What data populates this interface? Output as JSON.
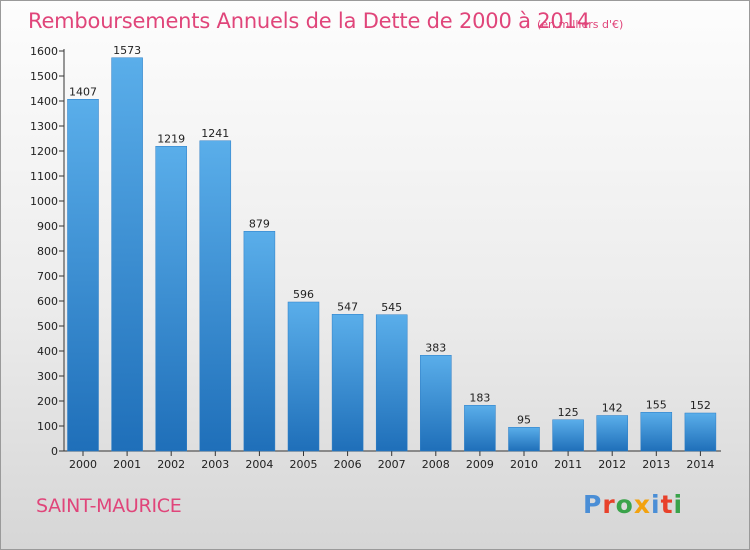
{
  "chart_data": {
    "type": "bar",
    "title": "Remboursements Annuels de la Dette de 2000 à 2014",
    "unit": "(en milliers d'€)",
    "categories": [
      "2000",
      "2001",
      "2002",
      "2003",
      "2004",
      "2005",
      "2006",
      "2007",
      "2008",
      "2009",
      "2010",
      "2011",
      "2012",
      "2013",
      "2014"
    ],
    "values": [
      1407,
      1573,
      1219,
      1241,
      879,
      596,
      547,
      545,
      383,
      183,
      95,
      125,
      142,
      155,
      152
    ],
    "ylim": [
      0,
      1600
    ],
    "yticks": [
      0,
      100,
      200,
      300,
      400,
      500,
      600,
      700,
      800,
      900,
      1000,
      1100,
      1200,
      1300,
      1400,
      1500,
      1600
    ],
    "grid": false,
    "bar_color": "#3a8fd6"
  },
  "commune": "SAINT-MAURICE",
  "logo": {
    "text": "Proxiti",
    "colors": [
      "#4a8ed6",
      "#e8412b",
      "#3aa34a",
      "#f2a20f",
      "#4a8ed6",
      "#e8412b",
      "#3aa34a"
    ]
  }
}
